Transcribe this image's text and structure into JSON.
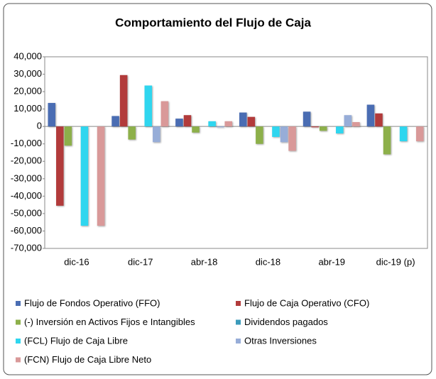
{
  "chart_data": {
    "type": "bar",
    "title": "Comportamiento del Flujo de Caja",
    "categories": [
      "dic-16",
      "dic-17",
      "abr-18",
      "dic-18",
      "abr-19",
      "dic-19 (p)"
    ],
    "series": [
      {
        "name": "Flujo de Fondos Operativo (FFO)",
        "color": "#4a6db3",
        "values": [
          13500,
          6000,
          4500,
          8000,
          8500,
          12500
        ]
      },
      {
        "name": "Flujo de Caja Operativo (CFO)",
        "color": "#b23b3b",
        "values": [
          -45500,
          29500,
          6500,
          5500,
          -500,
          7500
        ]
      },
      {
        "name": "(-) Inversión en Activos Fijos e Intangibles",
        "color": "#8db04a",
        "values": [
          -11000,
          -7500,
          -3500,
          -10000,
          -2500,
          -16000
        ]
      },
      {
        "name": "Dividendos pagados",
        "color": "#3b9bbb",
        "values": [
          0,
          0,
          0,
          0,
          0,
          0
        ]
      },
      {
        "name": "(FCL) Flujo de Caja Libre",
        "color": "#2fd6ef",
        "values": [
          -57000,
          23500,
          3000,
          -6000,
          -4000,
          -8500
        ]
      },
      {
        "name": "Otras Inversiones",
        "color": "#97add8",
        "values": [
          0,
          -9000,
          -500,
          -9000,
          6500,
          0
        ]
      },
      {
        "name": "(FCN) Flujo de Caja Libre Neto",
        "color": "#d99999",
        "values": [
          -57000,
          14500,
          3000,
          -14000,
          2500,
          -8500
        ]
      }
    ],
    "ylim": [
      -70000,
      40000
    ],
    "yticks": [
      {
        "value": -70000,
        "label": "-70,000"
      },
      {
        "value": -60000,
        "label": "-60,000"
      },
      {
        "value": -50000,
        "label": "-50,000"
      },
      {
        "value": -40000,
        "label": "-40,000"
      },
      {
        "value": -30000,
        "label": "-30,000"
      },
      {
        "value": -20000,
        "label": "-20,000"
      },
      {
        "value": -10000,
        "label": "-10,000"
      },
      0,
      {
        "value": 10000,
        "label": "10,000"
      },
      {
        "value": 20000,
        "label": "20,000"
      },
      {
        "value": 30000,
        "label": "30,000"
      },
      {
        "value": 40000,
        "label": "40,000"
      }
    ],
    "grid": false
  }
}
